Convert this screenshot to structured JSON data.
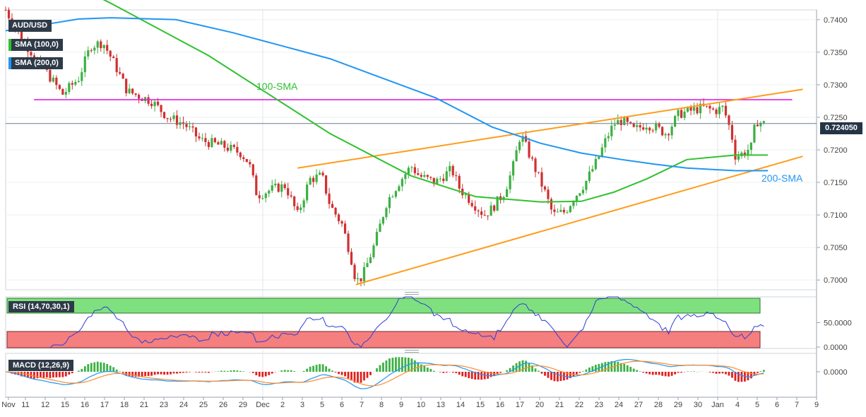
{
  "chart_data": {
    "type": "candlestick",
    "symbol": "AUD/USD",
    "legend": [
      {
        "label": "AUD/USD",
        "color": "#2e3a48"
      },
      {
        "label": "SMA (100,0)",
        "color": "#2e3a48"
      },
      {
        "label": "SMA (200,0)",
        "color": "#2e3a48"
      }
    ],
    "price_axis": {
      "ticks": [
        "0.7400",
        "0.7350",
        "0.7300",
        "0.7250",
        "0.7200",
        "0.7150",
        "0.7100",
        "0.7050",
        "0.7000"
      ],
      "ylim": [
        0.6985,
        0.7415
      ]
    },
    "last_price": "0.724050",
    "x_ticks": [
      "Nov",
      "11",
      "12",
      "15",
      "16",
      "17",
      "18",
      "21",
      "23",
      "24",
      "25",
      "26",
      "29",
      "Dec",
      "2",
      "3",
      "5",
      "6",
      "7",
      "8",
      "9",
      "10",
      "13",
      "14",
      "15",
      "16",
      "17",
      "20",
      "21",
      "22",
      "23",
      "24",
      "27",
      "28",
      "29",
      "30",
      "Jan",
      "4",
      "5",
      "6",
      "7",
      "9"
    ],
    "annotations": [
      "100-SMA",
      "200-SMA"
    ],
    "colors": {
      "up": "#3cb043",
      "down": "#d03030",
      "sma100": "#2fc12f",
      "sma200": "#2196f3",
      "trendline": "#ff9c1a",
      "horizontal": "#e020e0",
      "rsi_over": "#7fe07f",
      "rsi_under": "#f57e7e",
      "macd_line": "#2196f3",
      "signal_line": "#ff8c2e"
    },
    "horizontal_level": 0.7277,
    "series": [
      {
        "name": "100-SMA",
        "points": [
          [
            0.09,
            0.745
          ],
          [
            0.13,
            0.7425
          ],
          [
            0.25,
            0.7345
          ],
          [
            0.4,
            0.7225
          ],
          [
            0.5,
            0.716
          ],
          [
            0.58,
            0.7128
          ],
          [
            0.66,
            0.712
          ],
          [
            0.71,
            0.7121
          ],
          [
            0.75,
            0.7135
          ],
          [
            0.79,
            0.7155
          ],
          [
            0.84,
            0.7185
          ],
          [
            0.9,
            0.7192
          ],
          [
            0.94,
            0.7192
          ]
        ]
      },
      {
        "name": "200-SMA",
        "points": [
          [
            0.0,
            0.7383
          ],
          [
            0.05,
            0.7393
          ],
          [
            0.09,
            0.7401
          ],
          [
            0.13,
            0.7403
          ],
          [
            0.21,
            0.74
          ],
          [
            0.28,
            0.738
          ],
          [
            0.4,
            0.734
          ],
          [
            0.53,
            0.728
          ],
          [
            0.6,
            0.7235
          ],
          [
            0.66,
            0.721
          ],
          [
            0.71,
            0.7195
          ],
          [
            0.76,
            0.7185
          ],
          [
            0.8,
            0.7178
          ],
          [
            0.84,
            0.7172
          ],
          [
            0.9,
            0.7168
          ],
          [
            0.94,
            0.7168
          ]
        ]
      }
    ],
    "trendlines": [
      {
        "from": [
          0.36,
          0.7172
        ],
        "to": [
          0.983,
          0.7293
        ]
      },
      {
        "from": [
          0.432,
          0.6993
        ],
        "to": [
          0.983,
          0.719
        ]
      }
    ],
    "rsi": {
      "label": "RSI (14,70,30,1)",
      "ticks": [
        "50.0000",
        "0.0000"
      ],
      "last": "50.0000"
    },
    "macd": {
      "label": "MACD (12,26,9)",
      "ticks": [
        "0.0000"
      ]
    }
  }
}
